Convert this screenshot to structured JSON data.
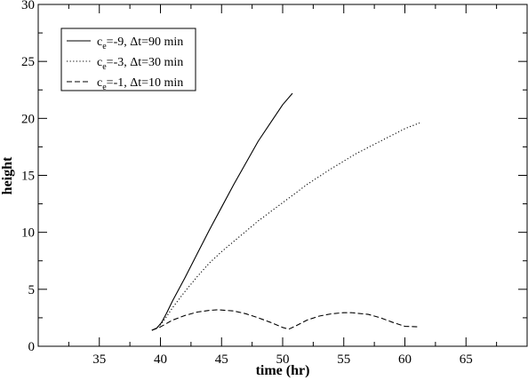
{
  "chart_data": {
    "type": "line",
    "xlabel": "time (hr)",
    "ylabel": "height",
    "xlim": [
      30,
      70
    ],
    "ylim": [
      0,
      30
    ],
    "x_ticks": [
      35,
      40,
      45,
      50,
      55,
      60,
      65
    ],
    "y_ticks": [
      0,
      5,
      10,
      15,
      20,
      25,
      30
    ],
    "grid": false,
    "legend_position": "top-left",
    "series": [
      {
        "name": "c_e=-9, Δt=90 min",
        "label_main": "c",
        "label_sub": "e",
        "label_rest": "=-9, Δt=90 min",
        "style": "solid",
        "x": [
          39.3,
          39.7,
          40.1,
          40.5,
          41.0,
          42.0,
          43.0,
          44.0,
          45.0,
          46.0,
          47.0,
          48.0,
          49.0,
          50.0,
          50.8
        ],
        "y": [
          1.4,
          1.6,
          2.1,
          2.9,
          4.0,
          6.0,
          8.1,
          10.2,
          12.2,
          14.2,
          16.1,
          18.0,
          19.6,
          21.2,
          22.2
        ]
      },
      {
        "name": "c_e=-3, Δt=30 min",
        "label_main": "c",
        "label_sub": "e",
        "label_rest": "=-3, Δt=30 min",
        "style": "dotted",
        "x": [
          39.3,
          39.7,
          40.1,
          40.5,
          41.0,
          42.0,
          43.0,
          44.0,
          45.0,
          46.0,
          48.0,
          50.0,
          52.0,
          54.0,
          56.0,
          58.0,
          60.0,
          61.2
        ],
        "y": [
          1.4,
          1.6,
          2.0,
          2.6,
          3.4,
          4.8,
          6.1,
          7.3,
          8.3,
          9.2,
          11.0,
          12.6,
          14.2,
          15.6,
          16.9,
          18.0,
          19.1,
          19.6
        ]
      },
      {
        "name": "c_e=-1, Δt=10 min",
        "label_main": "c",
        "label_sub": "e",
        "label_rest": "=-1, Δt=10 min",
        "style": "dashed",
        "x": [
          39.3,
          40.0,
          41.0,
          42.0,
          43.0,
          44.0,
          44.7,
          46.0,
          47.0,
          48.0,
          49.0,
          50.0,
          50.5,
          51.0,
          52.0,
          53.0,
          54.0,
          55.0,
          55.6,
          57.0,
          58.0,
          59.0,
          60.0,
          61.2
        ],
        "y": [
          1.4,
          1.7,
          2.3,
          2.7,
          3.0,
          3.15,
          3.2,
          3.1,
          2.85,
          2.5,
          2.1,
          1.65,
          1.5,
          1.75,
          2.3,
          2.65,
          2.85,
          2.95,
          2.95,
          2.8,
          2.5,
          2.1,
          1.75,
          1.7
        ]
      }
    ]
  }
}
